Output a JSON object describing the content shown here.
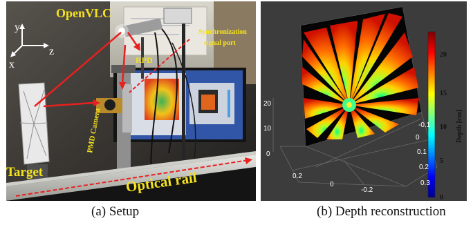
{
  "panel_a": {
    "caption": "(a) Setup",
    "labels": {
      "openvlc": "OpenVLC",
      "rpd": "RPD",
      "sync_line1": "Synchronization",
      "sync_line2": "signal port",
      "pmd_camera": "PMD Camera",
      "target": "Target",
      "optical_rail": "Optical rail"
    },
    "axes_labels": {
      "y": "y",
      "z": "z",
      "x": "x"
    }
  },
  "panel_b": {
    "caption": "(b) Depth reconstruction",
    "colorbar": {
      "title": "Depth [cm]",
      "ticks": [
        "0",
        "5",
        "10",
        "15",
        "20"
      ],
      "colors": [
        "#00008f",
        "#0000ff",
        "#0080ff",
        "#00ffff",
        "#80ff80",
        "#ffff00",
        "#ff8000",
        "#ff0000",
        "#800000"
      ]
    },
    "axis_ticks": {
      "vertical": [
        "20",
        "10",
        "0"
      ],
      "left_bottom": [
        "0.2",
        "0",
        "-0.2"
      ],
      "right_side": [
        "-0.1",
        "0",
        "0.1",
        "0.2",
        "0.3"
      ]
    }
  }
}
